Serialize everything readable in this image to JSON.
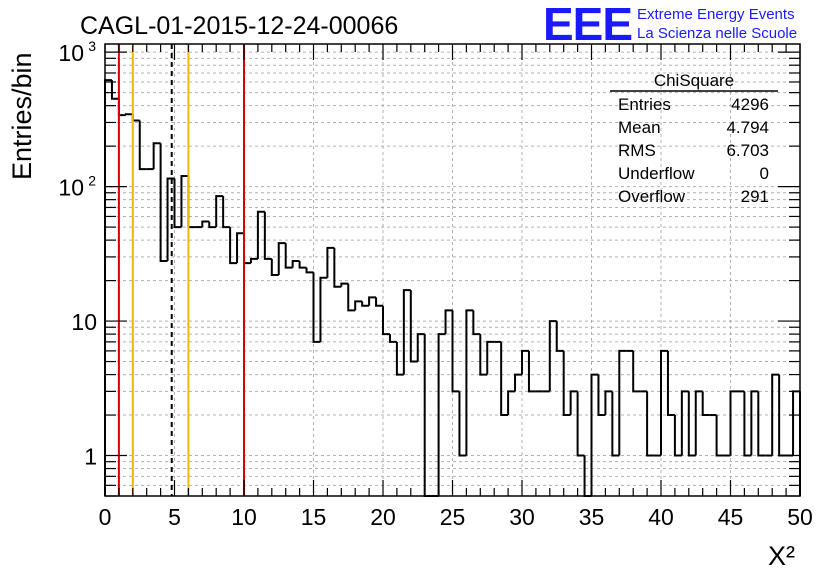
{
  "chart_data": {
    "type": "bar",
    "title": "CAGL-01-2015-12-24-00066",
    "xlabel": "X²",
    "ylabel": "Entries/bin",
    "xlim": [
      0,
      50
    ],
    "ylim": [
      0.5,
      1150
    ],
    "y_scale": "log",
    "grid": true,
    "x_ticks": [
      "0",
      "5",
      "10",
      "15",
      "20",
      "25",
      "30",
      "35",
      "40",
      "45",
      "50"
    ],
    "y_ticks": [
      {
        "base": "1",
        "exp": ""
      },
      {
        "base": "10",
        "exp": ""
      },
      {
        "base": "10",
        "exp": "2"
      },
      {
        "base": "10",
        "exp": "3"
      }
    ],
    "bin_width": 0.5,
    "bins_start": 0,
    "values": [
      620,
      450,
      340,
      345,
      310,
      135,
      135,
      210,
      28,
      115,
      50,
      120,
      50,
      50,
      55,
      50,
      85,
      50,
      27,
      45,
      27,
      29,
      65,
      29,
      22,
      38,
      25,
      28,
      25,
      23,
      7,
      21,
      35,
      18,
      19,
      12,
      14,
      13,
      15,
      13,
      8,
      7,
      4,
      17,
      5,
      8,
      0,
      0.5,
      8,
      12,
      3,
      1,
      12,
      8,
      4,
      7,
      7,
      2,
      3,
      4,
      6,
      3,
      3,
      3,
      10,
      6,
      2,
      3,
      1,
      0,
      4,
      2,
      3,
      1,
      6,
      6,
      3,
      3,
      1,
      1,
      6,
      2,
      1,
      3,
      1,
      3,
      2,
      2,
      1,
      1,
      3,
      3,
      1,
      3,
      1,
      1,
      4,
      1,
      1,
      3
    ],
    "lines": [
      {
        "x": 1,
        "color": "#dd0000",
        "style": "solid"
      },
      {
        "x": 2,
        "color": "#f0b800",
        "style": "solid"
      },
      {
        "x": 4.8,
        "color": "#000000",
        "style": "dashed"
      },
      {
        "x": 6,
        "color": "#f0b800",
        "style": "solid"
      },
      {
        "x": 10,
        "color": "#dd0000",
        "style": "solid"
      }
    ],
    "stats": {
      "title": "ChiSquare",
      "rows": [
        {
          "label": "Entries",
          "value": "4296"
        },
        {
          "label": "Mean",
          "value": "4.794"
        },
        {
          "label": "RMS",
          "value": "6.703"
        },
        {
          "label": "Underflow",
          "value": "0"
        },
        {
          "label": "Overflow",
          "value": "291"
        }
      ]
    }
  },
  "logo": {
    "letters": "EEE",
    "line1": "Extreme Energy Events",
    "line2": "La Scienza nelle Scuole",
    "color": "#1a1aff"
  },
  "colors": {
    "histogram": "#000000",
    "grid": "#b0b0b0",
    "red": "#dd0000",
    "yellow": "#f0b800"
  }
}
